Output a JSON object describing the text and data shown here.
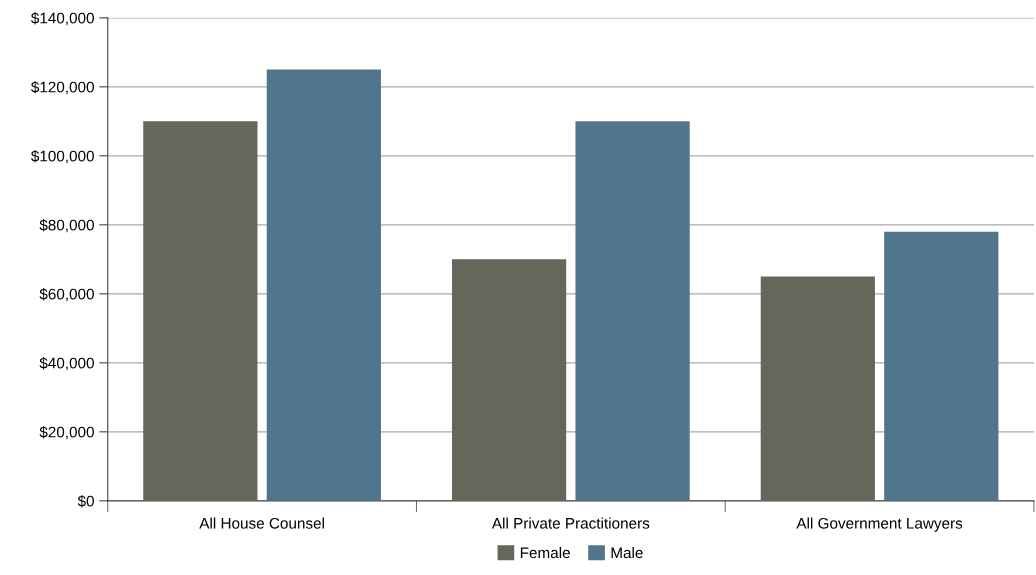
{
  "chart_data": {
    "type": "bar",
    "categories": [
      "All House Counsel",
      "All Private Practitioners",
      "All Government Lawyers"
    ],
    "series": [
      {
        "name": "Female",
        "color": "#66665a",
        "values": [
          110000,
          70000,
          65000
        ]
      },
      {
        "name": "Male",
        "color": "#51758a",
        "values": [
          125000,
          110000,
          78000
        ]
      }
    ],
    "ylim": [
      0,
      140000
    ],
    "yticks": [
      {
        "value": 0,
        "label": "$0"
      },
      {
        "value": 20000,
        "label": "$20,000"
      },
      {
        "value": 40000,
        "label": "$40,000"
      },
      {
        "value": 60000,
        "label": "$60,000"
      },
      {
        "value": 80000,
        "label": "$80,000"
      },
      {
        "value": 100000,
        "label": "$100,000"
      },
      {
        "value": 120000,
        "label": "$120,000"
      },
      {
        "value": 140000,
        "label": "$140,000"
      }
    ],
    "grid": "y",
    "legend": "bottom"
  }
}
